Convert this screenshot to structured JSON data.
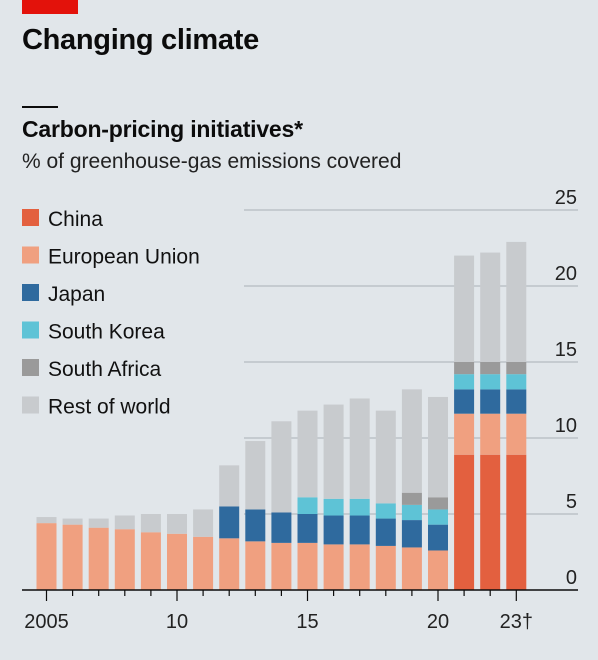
{
  "header": {
    "headline": "Changing climate",
    "title": "Carbon-pricing initiatives*",
    "subtitle": "% of greenhouse-gas emissions covered"
  },
  "chart_data": {
    "type": "bar",
    "stacked": true,
    "title": "Carbon-pricing initiatives*",
    "subtitle": "% of greenhouse-gas emissions covered",
    "ylim": [
      0,
      25
    ],
    "yticks": [
      0,
      5,
      10,
      15,
      20,
      25
    ],
    "y_axis_side": "right",
    "grid": true,
    "legend_position": "top-left",
    "categories": [
      "2005",
      "2006",
      "2007",
      "2008",
      "2009",
      "2010",
      "2011",
      "2012",
      "2013",
      "2014",
      "2015",
      "2016",
      "2017",
      "2018",
      "2019",
      "2020",
      "2021",
      "2022",
      "2023"
    ],
    "xtick_labels": [
      {
        "year": "2005",
        "label": "2005"
      },
      {
        "year": "2010",
        "label": "10"
      },
      {
        "year": "2015",
        "label": "15"
      },
      {
        "year": "2020",
        "label": "20"
      },
      {
        "year": "2023",
        "label": "23†"
      }
    ],
    "series": [
      {
        "name": "China",
        "color": "#e3603f",
        "values": [
          0,
          0,
          0,
          0,
          0,
          0,
          0,
          0,
          0,
          0,
          0,
          0,
          0,
          0,
          0,
          0,
          8.9,
          8.9,
          8.9
        ]
      },
      {
        "name": "European Union",
        "color": "#f0a080",
        "values": [
          4.4,
          4.3,
          4.1,
          4.0,
          3.8,
          3.7,
          3.5,
          3.4,
          3.2,
          3.1,
          3.1,
          3.0,
          3.0,
          2.9,
          2.8,
          2.6,
          2.7,
          2.7,
          2.7
        ]
      },
      {
        "name": "Japan",
        "color": "#2f6a9e",
        "values": [
          0,
          0,
          0,
          0,
          0,
          0,
          0,
          2.1,
          2.1,
          2.0,
          1.9,
          1.9,
          1.9,
          1.8,
          1.8,
          1.7,
          1.6,
          1.6,
          1.6
        ]
      },
      {
        "name": "South Korea",
        "color": "#5ec3d6",
        "values": [
          0,
          0,
          0,
          0,
          0,
          0,
          0,
          0,
          0,
          0,
          1.1,
          1.1,
          1.1,
          1.0,
          1.0,
          1.0,
          1.0,
          1.0,
          1.0
        ]
      },
      {
        "name": "South Africa",
        "color": "#9a9a9a",
        "values": [
          0,
          0,
          0,
          0,
          0,
          0,
          0,
          0,
          0,
          0,
          0,
          0,
          0,
          0,
          0.8,
          0.8,
          0.8,
          0.8,
          0.8
        ]
      },
      {
        "name": "Rest of world",
        "color": "#c8cbce",
        "values": [
          0.4,
          0.4,
          0.6,
          0.9,
          1.2,
          1.3,
          1.8,
          2.7,
          4.5,
          6.0,
          5.7,
          6.2,
          6.6,
          6.1,
          6.8,
          6.6,
          7.0,
          7.2,
          7.9
        ]
      }
    ]
  }
}
